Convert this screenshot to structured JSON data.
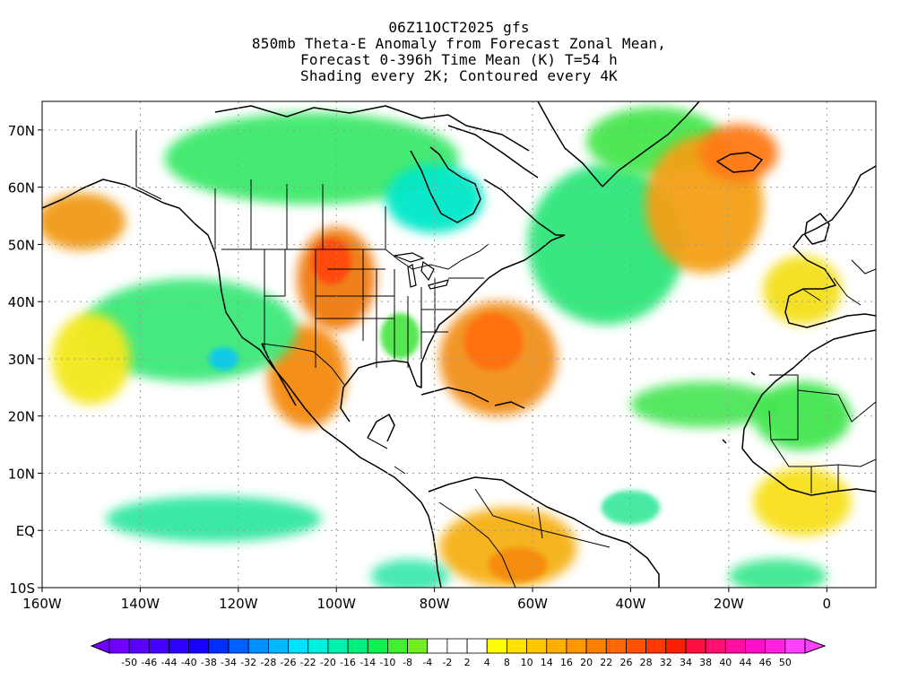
{
  "header": {
    "line1": "06Z11OCT2025 gfs",
    "line2": "850mb Theta-E Anomaly from Forecast Zonal Mean,",
    "line3": "Forecast 0-396h Time Mean (K) T=54 h",
    "line4": "Shading every 2K; Contoured every 4K"
  },
  "map": {
    "lon_range": [
      -160,
      10
    ],
    "lat_range": [
      -10,
      75
    ],
    "lon_ticks": [
      {
        "value": -160,
        "label": "160W"
      },
      {
        "value": -140,
        "label": "140W"
      },
      {
        "value": -120,
        "label": "120W"
      },
      {
        "value": -100,
        "label": "100W"
      },
      {
        "value": -80,
        "label": "80W"
      },
      {
        "value": -60,
        "label": "60W"
      },
      {
        "value": -40,
        "label": "40W"
      },
      {
        "value": -20,
        "label": "20W"
      },
      {
        "value": 0,
        "label": "0"
      }
    ],
    "lat_ticks": [
      {
        "value": 70,
        "label": "70N"
      },
      {
        "value": 60,
        "label": "60N"
      },
      {
        "value": 50,
        "label": "50N"
      },
      {
        "value": 40,
        "label": "40N"
      },
      {
        "value": 30,
        "label": "30N"
      },
      {
        "value": 20,
        "label": "20N"
      },
      {
        "value": 10,
        "label": "10N"
      },
      {
        "value": 0,
        "label": "EQ"
      },
      {
        "value": -10,
        "label": "10S"
      }
    ],
    "regions": [
      {
        "name": "arctic-canada-negative",
        "color": "#3ee86a",
        "lon": -105,
        "lat": 65,
        "rx": 30,
        "ry": 8
      },
      {
        "name": "hudson-bay-cyan",
        "color": "#00e8c8",
        "lon": -80,
        "lat": 58,
        "rx": 10,
        "ry": 6
      },
      {
        "name": "north-atlantic-negative",
        "color": "#2ee67a",
        "lon": -45,
        "lat": 50,
        "rx": 16,
        "ry": 14
      },
      {
        "name": "greenland-east-negative",
        "color": "#46e650",
        "lon": -35,
        "lat": 68,
        "rx": 14,
        "ry": 6
      },
      {
        "name": "great-plains-positive",
        "color": "#f07a10",
        "lon": -100,
        "lat": 44,
        "rx": 8,
        "ry": 9
      },
      {
        "name": "dakotas-core-positive",
        "color": "#ff4a10",
        "lon": -101,
        "lat": 47,
        "rx": 4,
        "ry": 4
      },
      {
        "name": "mexico-sw-positive",
        "color": "#f48a10",
        "lon": -106,
        "lat": 27,
        "rx": 8,
        "ry": 9
      },
      {
        "name": "western-atlantic-positive",
        "color": "#f2901a",
        "lon": -67,
        "lat": 30,
        "rx": 12,
        "ry": 10
      },
      {
        "name": "western-atlantic-core",
        "color": "#ff7010",
        "lon": -68,
        "lat": 33,
        "rx": 6,
        "ry": 5
      },
      {
        "name": "northeast-atlantic-positive",
        "color": "#f4a014",
        "lon": -25,
        "lat": 57,
        "rx": 12,
        "ry": 12
      },
      {
        "name": "iceland-positive-core",
        "color": "#ff7a12",
        "lon": -18,
        "lat": 66,
        "rx": 8,
        "ry": 5
      },
      {
        "name": "alaska-positive",
        "color": "#f09a18",
        "lon": -152,
        "lat": 54,
        "rx": 9,
        "ry": 5
      },
      {
        "name": "south-america-positive",
        "color": "#f6b014",
        "lon": -65,
        "lat": -3,
        "rx": 14,
        "ry": 7
      },
      {
        "name": "south-america-core",
        "color": "#f68a10",
        "lon": -63,
        "lat": -6,
        "rx": 6,
        "ry": 3
      },
      {
        "name": "east-pacific-negative",
        "color": "#3ee87a",
        "lon": -130,
        "lat": 35,
        "rx": 22,
        "ry": 9
      },
      {
        "name": "east-pacific-cyan",
        "color": "#10c8f0",
        "lon": -123,
        "lat": 30,
        "rx": 3,
        "ry": 2
      },
      {
        "name": "tropical-pacific-negative",
        "color": "#30e8a0",
        "lon": -125,
        "lat": 2,
        "rx": 22,
        "ry": 4
      },
      {
        "name": "pacific-yellow",
        "color": "#f4e81a",
        "lon": -150,
        "lat": 30,
        "rx": 8,
        "ry": 8
      },
      {
        "name": "atlantic-tropical-negative",
        "color": "#4ee65a",
        "lon": -25,
        "lat": 22,
        "rx": 15,
        "ry": 4
      },
      {
        "name": "equatorial-atlantic-negative",
        "color": "#40e8a0",
        "lon": -40,
        "lat": 4,
        "rx": 6,
        "ry": 3
      },
      {
        "name": "south-atlantic-cyan",
        "color": "#40e8b0",
        "lon": -85,
        "lat": -8,
        "rx": 8,
        "ry": 3
      },
      {
        "name": "south-atlantic-east",
        "color": "#3ee890",
        "lon": -10,
        "lat": -8,
        "rx": 10,
        "ry": 3
      },
      {
        "name": "western-europe-yellow",
        "color": "#f4e01a",
        "lon": -5,
        "lat": 42,
        "rx": 8,
        "ry": 6
      },
      {
        "name": "sahara-negative",
        "color": "#42e650",
        "lon": -5,
        "lat": 20,
        "rx": 10,
        "ry": 6
      },
      {
        "name": "west-africa-yellow",
        "color": "#f8e01a",
        "lon": -5,
        "lat": 5,
        "rx": 10,
        "ry": 6
      },
      {
        "name": "us-southeast-negative",
        "color": "#4ee64a",
        "lon": -87,
        "lat": 34,
        "rx": 4,
        "ry": 4
      }
    ]
  },
  "colorbar": {
    "colors": [
      "#7000ff",
      "#5a00ff",
      "#4400ff",
      "#2e00ff",
      "#1600ff",
      "#0030ff",
      "#0060ff",
      "#0090ff",
      "#00b8ff",
      "#00e0ff",
      "#00f0e0",
      "#00f0b0",
      "#00f080",
      "#10f050",
      "#40f030",
      "#70f020",
      "#ffffff",
      "#ffffff",
      "#ffffff",
      "#ffff00",
      "#ffe000",
      "#ffc800",
      "#ffb000",
      "#ff9800",
      "#ff8000",
      "#ff6800",
      "#ff5000",
      "#ff3800",
      "#ff2000",
      "#ff1040",
      "#ff1070",
      "#ff10a0",
      "#ff10c8",
      "#ff20e0",
      "#ff40ff"
    ],
    "labels": [
      "-50",
      "-46",
      "-44",
      "-40",
      "-38",
      "-34",
      "-32",
      "-28",
      "-26",
      "-22",
      "-20",
      "-16",
      "-14",
      "-10",
      "-8",
      "-4",
      "-2",
      "2",
      "4",
      "8",
      "10",
      "14",
      "16",
      "20",
      "22",
      "26",
      "28",
      "32",
      "34",
      "38",
      "40",
      "44",
      "46",
      "50"
    ]
  }
}
